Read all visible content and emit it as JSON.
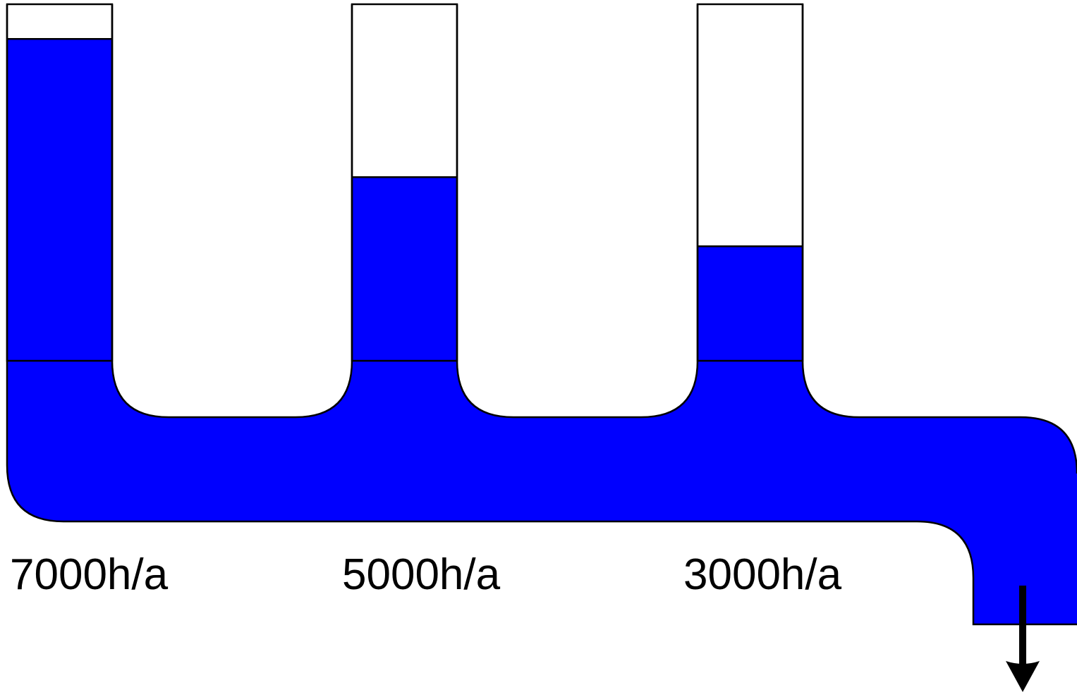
{
  "diagram": {
    "fill_color": "#0000ff",
    "outline_color": "#000000",
    "arrow_color": "#000000",
    "arrow_icon": "down-arrow-icon",
    "tubes": [
      {
        "label": "7000h/a",
        "level_fraction": 0.907
      },
      {
        "label": "5000h/a",
        "level_fraction": 0.537
      },
      {
        "label": "3000h/a",
        "level_fraction": 0.352
      }
    ]
  }
}
